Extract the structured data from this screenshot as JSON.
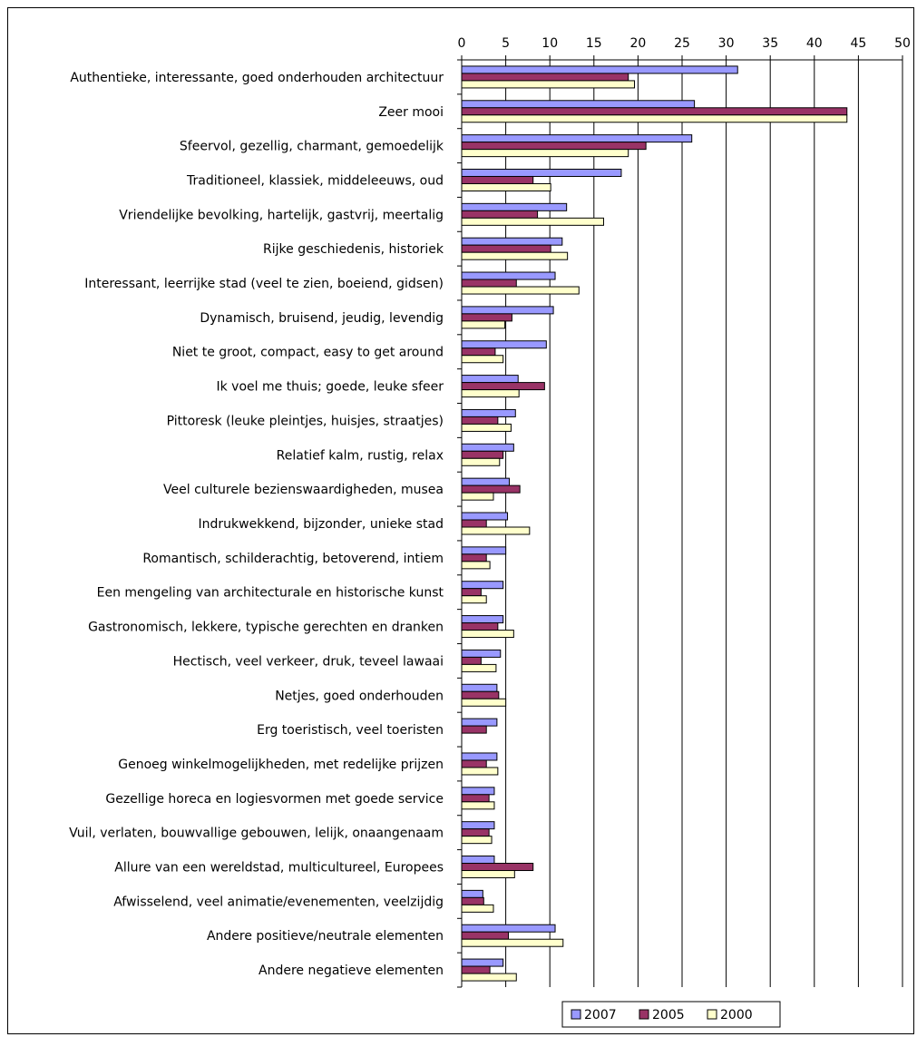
{
  "chart_data": {
    "type": "bar",
    "orientation": "horizontal",
    "title": "",
    "xlabel": "",
    "ylabel": "",
    "xlim": [
      0,
      50
    ],
    "x_ticks": [
      "0",
      "5",
      "10",
      "15",
      "20",
      "25",
      "30",
      "35",
      "40",
      "45",
      "50"
    ],
    "x_axis_position": "top",
    "grid": "vertical gridlines",
    "legend_position": "bottom",
    "categories": [
      "Authentieke, interessante, goed onderhouden architectuur",
      "Zeer mooi",
      "Sfeervol, gezellig, charmant, gemoedelijk",
      "Traditioneel, klassiek, middeleeuws, oud",
      "Vriendelijke bevolking, hartelijk, gastvrij, meertalig",
      "Rijke geschiedenis, historiek",
      "Interessant, leerrijke stad (veel te zien, boeiend, gidsen)",
      "Dynamisch, bruisend, jeudig, levendig",
      "Niet te groot, compact, easy to get around",
      "Ik voel me thuis; goede, leuke sfeer",
      "Pittoresk (leuke pleintjes, huisjes, straatjes)",
      "Relatief kalm, rustig, relax",
      "Veel culturele bezienswaardigheden, musea",
      "Indrukwekkend, bijzonder, unieke stad",
      "Romantisch, schilderachtig, betoverend, intiem",
      "Een mengeling van architecturale en historische kunst",
      "Gastronomisch, lekkere, typische gerechten en dranken",
      "Hectisch, veel verkeer, druk, teveel lawaai",
      "Netjes, goed onderhouden",
      "Erg toeristisch, veel toeristen",
      "Genoeg winkelmogelijkheden, met redelijke prijzen",
      "Gezellige horeca en logiesvormen met goede service",
      "Vuil, verlaten, bouwvallige gebouwen, lelijk, onaangenaam",
      "Allure van een wereldstad, multicultureel, Europees",
      "Afwisselend, veel animatie/evenementen, veelzijdig",
      "Andere positieve/neutrale elementen",
      "Andere negatieve elementen"
    ],
    "series": [
      {
        "name": "2007",
        "color": "#9999FF",
        "values": [
          31.3,
          26.4,
          26.1,
          18.1,
          11.9,
          11.4,
          10.6,
          10.4,
          9.6,
          6.4,
          6.1,
          5.9,
          5.4,
          5.2,
          5.0,
          4.7,
          4.7,
          4.4,
          4.0,
          4.0,
          4.0,
          3.7,
          3.7,
          3.7,
          2.4,
          10.6,
          4.7
        ]
      },
      {
        "name": "2005",
        "color": "#993366",
        "values": [
          18.9,
          43.7,
          20.9,
          8.1,
          8.6,
          10.1,
          6.2,
          5.7,
          3.8,
          9.4,
          4.1,
          4.7,
          6.6,
          2.8,
          2.8,
          2.2,
          4.1,
          2.2,
          4.2,
          2.8,
          2.8,
          3.1,
          3.1,
          8.1,
          2.5,
          5.3,
          3.2
        ]
      },
      {
        "name": "2000",
        "color": "#FFFFCC",
        "values": [
          19.6,
          43.7,
          18.9,
          10.1,
          16.1,
          12.0,
          13.3,
          4.9,
          4.7,
          6.5,
          5.6,
          4.3,
          3.6,
          7.7,
          3.2,
          2.8,
          5.9,
          3.9,
          5.0,
          0,
          4.1,
          3.7,
          3.4,
          6.0,
          3.6,
          11.5,
          6.2
        ]
      }
    ]
  }
}
